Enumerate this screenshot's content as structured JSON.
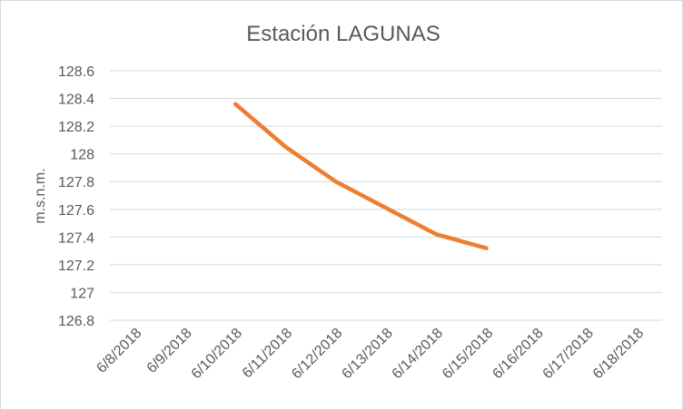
{
  "chart_data": {
    "type": "line",
    "title": "Estación LAGUNAS",
    "xlabel": "",
    "ylabel": "m.s.n.m.",
    "categories": [
      "6/8/2018",
      "6/9/2018",
      "6/10/2018",
      "6/11/2018",
      "6/12/2018",
      "6/13/2018",
      "6/14/2018",
      "6/15/2018",
      "6/16/2018",
      "6/17/2018",
      "6/18/2018"
    ],
    "ylim": [
      126.8,
      128.6
    ],
    "yticks": [
      "126.8",
      "127",
      "127.2",
      "127.4",
      "127.6",
      "127.8",
      "128",
      "128.2",
      "128.4",
      "128.6"
    ],
    "grid": true,
    "legend": "none",
    "series": [
      {
        "color": "#ed7d31",
        "values": [
          null,
          null,
          128.36,
          128.05,
          127.8,
          127.61,
          127.42,
          127.32,
          null,
          null,
          null
        ]
      }
    ]
  }
}
